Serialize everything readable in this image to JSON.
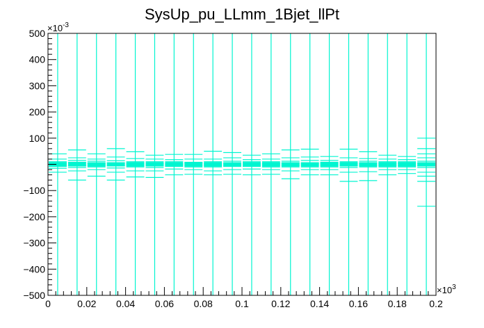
{
  "chart_data": {
    "type": "scatter",
    "title": "SysUp_pu_LLmm_1Bjet_llPt",
    "xlabel": "",
    "ylabel": "",
    "x_multiplier_label": "×10",
    "x_multiplier_exp": "3",
    "y_multiplier_label": "×10",
    "y_multiplier_exp": "-3",
    "xlim": [
      0,
      0.2
    ],
    "ylim": [
      -500,
      500
    ],
    "x_ticks": [
      0,
      0.02,
      0.04,
      0.06,
      0.08,
      0.1,
      0.12,
      0.14,
      0.16,
      0.18,
      0.2
    ],
    "x_tick_labels": [
      "0",
      "0.02",
      "0.04",
      "0.06",
      "0.08",
      "0.1",
      "0.12",
      "0.14",
      "0.16",
      "0.18",
      "0.2"
    ],
    "y_ticks": [
      500,
      400,
      300,
      200,
      100,
      -100,
      -200,
      -300,
      -400,
      -500
    ],
    "y_tick_labels": [
      "500",
      "400",
      "300",
      "200",
      "100",
      "−100",
      "−200",
      "−300",
      "−400",
      "−500"
    ],
    "color": "#00f5d0",
    "grid": false,
    "legend": "none",
    "series": [
      {
        "bin_edges": [
          0,
          0.01,
          0.02,
          0.03,
          0.04,
          0.05,
          0.06,
          0.07,
          0.08,
          0.09,
          0.1,
          0.11,
          0.12,
          0.13,
          0.14,
          0.15,
          0.16,
          0.17,
          0.18,
          0.19,
          0.2
        ],
        "points": [
          {
            "x": 0.005,
            "y": [
              5,
              -2,
              10,
              -8,
              20,
              -15,
              40,
              -30
            ]
          },
          {
            "x": 0.015,
            "y": [
              8,
              -5,
              15,
              -12,
              25,
              -25,
              55,
              -60
            ]
          },
          {
            "x": 0.025,
            "y": [
              3,
              -3,
              12,
              -10,
              20,
              -20,
              40,
              -45
            ]
          },
          {
            "x": 0.035,
            "y": [
              5,
              -4,
              14,
              -14,
              28,
              -30,
              60,
              -60
            ]
          },
          {
            "x": 0.045,
            "y": [
              4,
              -2,
              10,
              -10,
              22,
              -25,
              48,
              -48
            ]
          },
          {
            "x": 0.055,
            "y": [
              3,
              -3,
              10,
              -12,
              20,
              -25,
              35,
              -50
            ]
          },
          {
            "x": 0.065,
            "y": [
              2,
              -2,
              10,
              -8,
              18,
              -18,
              38,
              -40
            ]
          },
          {
            "x": 0.075,
            "y": [
              3,
              -4,
              8,
              -10,
              20,
              -20,
              38,
              -38
            ]
          },
          {
            "x": 0.085,
            "y": [
              2,
              -3,
              10,
              -10,
              20,
              -25,
              50,
              -40
            ]
          },
          {
            "x": 0.095,
            "y": [
              3,
              -2,
              12,
              -8,
              25,
              -20,
              45,
              -38
            ]
          },
          {
            "x": 0.105,
            "y": [
              2,
              -3,
              10,
              -8,
              18,
              -18,
              35,
              -40
            ]
          },
          {
            "x": 0.115,
            "y": [
              3,
              -2,
              10,
              -10,
              20,
              -20,
              40,
              -38
            ]
          },
          {
            "x": 0.125,
            "y": [
              4,
              -3,
              12,
              -10,
              25,
              -25,
              55,
              -55
            ]
          },
          {
            "x": 0.135,
            "y": [
              3,
              -2,
              15,
              -10,
              28,
              -20,
              58,
              -40
            ]
          },
          {
            "x": 0.145,
            "y": [
              2,
              -3,
              8,
              -10,
              15,
              -20,
              30,
              -40
            ]
          },
          {
            "x": 0.155,
            "y": [
              3,
              -4,
              10,
              -12,
              25,
              -30,
              58,
              -65
            ]
          },
          {
            "x": 0.165,
            "y": [
              5,
              -3,
              12,
              -10,
              22,
              -28,
              48,
              -62
            ]
          },
          {
            "x": 0.175,
            "y": [
              3,
              -3,
              10,
              -10,
              20,
              -20,
              35,
              -40
            ]
          },
          {
            "x": 0.185,
            "y": [
              4,
              -4,
              10,
              -10,
              18,
              -20,
              30,
              -35
            ]
          },
          {
            "x": 0.195,
            "y": [
              5,
              -5,
              12,
              -12,
              25,
              -30,
              40,
              -45,
              60,
              -65,
              100,
              -160
            ]
          }
        ]
      }
    ]
  }
}
